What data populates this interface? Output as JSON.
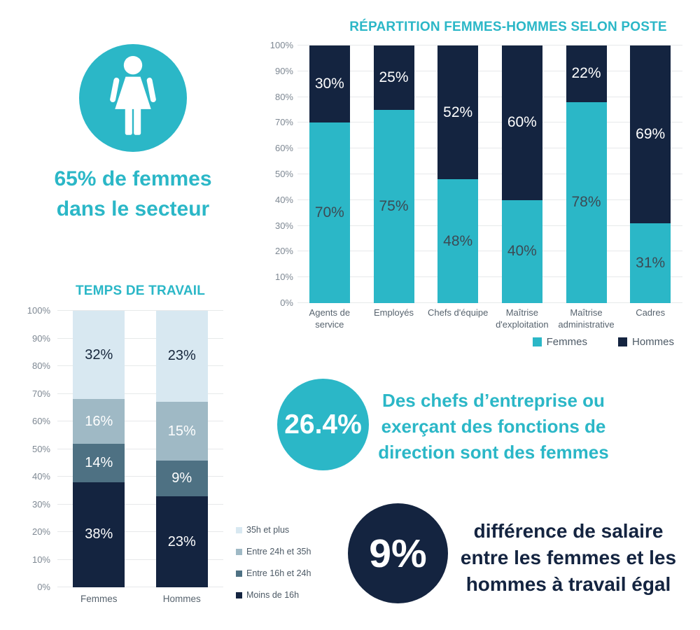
{
  "colors": {
    "teal": "#2bb7c7",
    "navy": "#142440",
    "light_blue": "#d8e8f1",
    "mid_blue_gray": "#9fb9c5",
    "slate": "#4e7183",
    "grid": "#e7e9ea",
    "axis_text": "#7e8893",
    "category_text": "#57636e",
    "legend_text": "#4d5a66",
    "teal_bar_label": "#3c4a54",
    "background": "#ffffff"
  },
  "stats": {
    "sector_share": {
      "text": "65% de femmes\ndans le secteur",
      "icon": "woman-icon"
    },
    "direction": {
      "value": "26.4%",
      "text": "Des chefs d’entreprise ou\nexerçant des fonctions de\ndirection sont des femmes"
    },
    "salary_gap": {
      "value": "9%",
      "text": "différence de salaire\nentre les femmes et les\nhommes à travail égal"
    }
  },
  "chart_data": [
    {
      "type": "bar",
      "stacked": true,
      "title": "RÉPARTITION FEMMES-HOMMES SELON POSTE",
      "categories": [
        "Agents de service",
        "Employés",
        "Chefs d'équipe",
        "Maîtrise d'exploitation",
        "Maîtrise administrative",
        "Cadres"
      ],
      "series": [
        {
          "name": "Femmes",
          "color": "#2bb7c7",
          "label_color": "#3c4a54",
          "values": [
            70,
            75,
            48,
            40,
            78,
            31
          ]
        },
        {
          "name": "Hommes",
          "color": "#142440",
          "label_color": "#ffffff",
          "values": [
            30,
            25,
            52,
            60,
            22,
            69
          ]
        }
      ],
      "ylim": [
        0,
        100
      ],
      "ytick_step": 10,
      "ytick_suffix": "%",
      "grid": true,
      "legend_position": "bottom-right",
      "legend_reverse": false
    },
    {
      "type": "bar",
      "stacked": true,
      "title": "TEMPS DE TRAVAIL",
      "categories": [
        "Femmes",
        "Hommes"
      ],
      "series": [
        {
          "name": "Moins de 16h",
          "color": "#142440",
          "label_color": "#ffffff",
          "values": [
            38,
            23
          ]
        },
        {
          "name": "Entre 16h et 24h",
          "color": "#4e7183",
          "label_color": "#ffffff",
          "values": [
            14,
            9
          ]
        },
        {
          "name": "Entre 24h et 35h",
          "color": "#9fb9c5",
          "label_color": "#ffffff",
          "values": [
            16,
            15
          ]
        },
        {
          "name": "35h et plus",
          "color": "#d8e8f1",
          "label_color": "#16263c",
          "values": [
            32,
            23
          ]
        }
      ],
      "ylim": [
        0,
        100
      ],
      "ytick_step": 10,
      "ytick_suffix": "%",
      "grid": true,
      "normalized_to_100": true,
      "legend_position": "right",
      "legend_reverse": true
    }
  ]
}
